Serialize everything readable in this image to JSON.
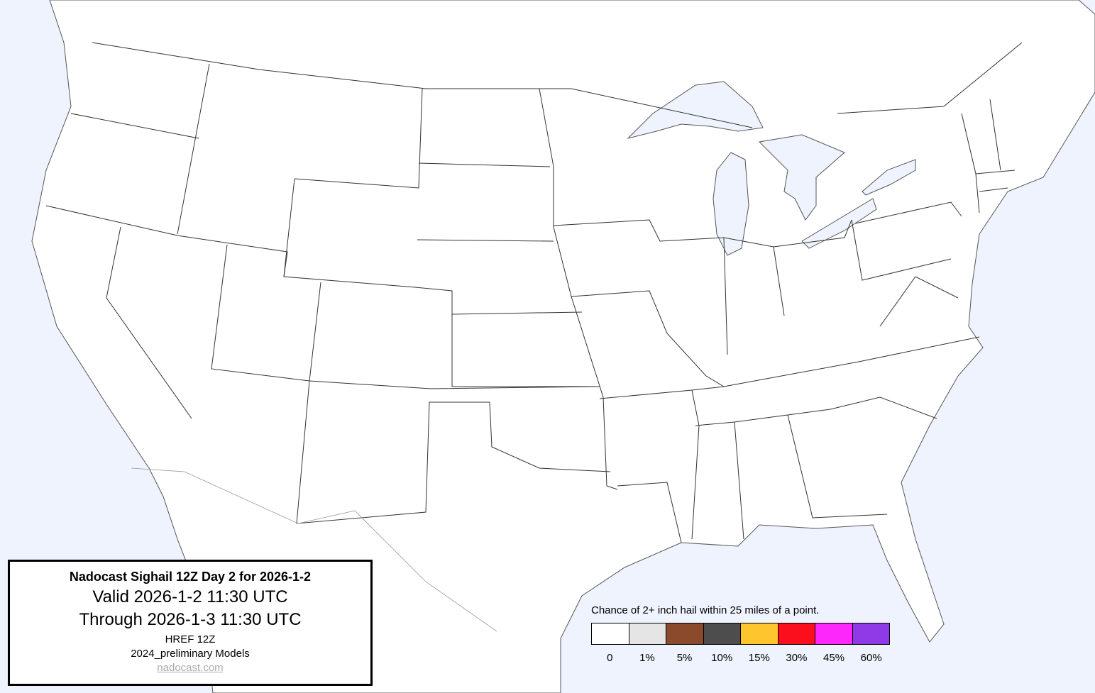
{
  "info": {
    "title": "Nadocast Sighail 12Z Day 2 for 2026-1-2",
    "valid": "Valid 2026-1-2 11:30 UTC",
    "through": "Through 2026-1-3 11:30 UTC",
    "model": "HREF 12Z",
    "models_version": "2024_preliminary Models",
    "link": "nadocast.com"
  },
  "legend": {
    "title": "Chance of 2+ inch hail within 25 miles of a point.",
    "items": [
      {
        "label": "0",
        "color": "#ffffff"
      },
      {
        "label": "1%",
        "color": "#e5e5e5"
      },
      {
        "label": "5%",
        "color": "#8b4a2c"
      },
      {
        "label": "10%",
        "color": "#4d4d4d"
      },
      {
        "label": "15%",
        "color": "#fec52f"
      },
      {
        "label": "30%",
        "color": "#fb0f1c"
      },
      {
        "label": "45%",
        "color": "#fd27fc"
      },
      {
        "label": "60%",
        "color": "#9039e6"
      }
    ]
  },
  "map": {
    "water_color": "#eef3fd",
    "land_color": "#ffffff"
  }
}
